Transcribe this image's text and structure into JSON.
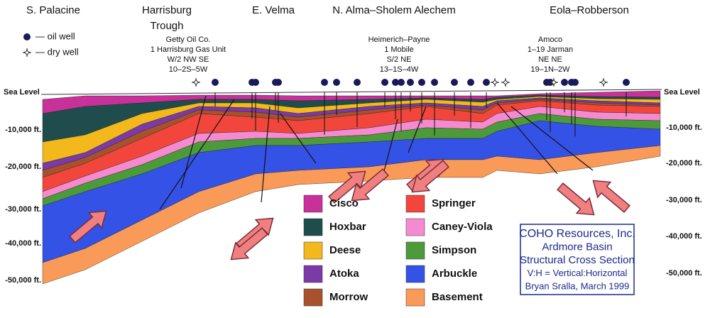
{
  "regions": [
    [
      "S. Palacine"
    ],
    [
      "Harrisburg",
      "Trough"
    ],
    [
      "E. Velma"
    ],
    [
      "N. Alma–Sholem Alechem"
    ],
    [
      "Eola–Robberson"
    ]
  ],
  "key": {
    "oil_well": "— oil well",
    "dry_well": "— dry well"
  },
  "well_notes": [
    [
      "Getty Oil Co.",
      "1 Harrisburg Gas Unit",
      "W/2  NW  SE",
      "10–2S–5W"
    ],
    [
      "Heimerich–Payne",
      "1 Mobile",
      "S/2 NE",
      "13–1S–4W"
    ],
    [
      "Amoco",
      "1–19 Jarman",
      "NE NE",
      "19–1N–2W"
    ]
  ],
  "depth_labels": [
    "Sea Level",
    "-10,000 ft.",
    "-20,000 ft.",
    "-30,000 ft.",
    "-40,000 ft.",
    "-50,000 ft."
  ],
  "legend": [
    {
      "name": "Cisco",
      "color": "#c8309a"
    },
    {
      "name": "Hoxbar",
      "color": "#1f4d4d"
    },
    {
      "name": "Deese",
      "color": "#f2b81c"
    },
    {
      "name": "Atoka",
      "color": "#7b3aa8"
    },
    {
      "name": "Morrow",
      "color": "#a8522d"
    },
    {
      "name": "Springer",
      "color": "#f2463c"
    },
    {
      "name": "Caney-Viola",
      "color": "#f58ad0"
    },
    {
      "name": "Simpson",
      "color": "#4d9a3a"
    },
    {
      "name": "Arbuckle",
      "color": "#3552e6"
    },
    {
      "name": "Basement",
      "color": "#f99a58"
    }
  ],
  "title_box": [
    "COHO Resources, Inc.",
    "Ardmore Basin",
    "Structural Cross Section",
    "V:H = Vertical:Horizontal",
    "Bryan Sralla, March 1999"
  ]
}
